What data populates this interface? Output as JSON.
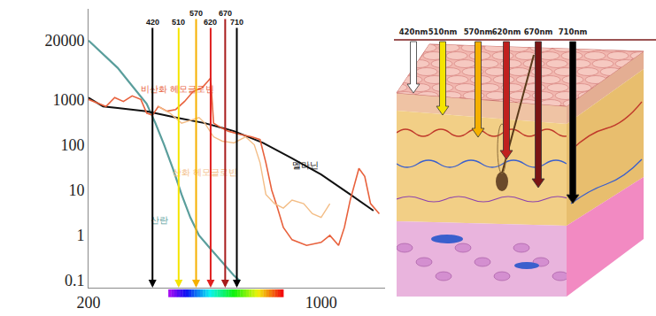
{
  "chart_data": {
    "type": "line",
    "log": "y",
    "grid": false,
    "xlim": [
      200,
      1220
    ],
    "xticks": [
      200,
      1000
    ],
    "ylim": [
      0.07,
      100000
    ],
    "yticks": [
      0.1,
      1,
      10,
      100,
      1000,
      20000
    ],
    "series": [
      {
        "name": "산란",
        "color": "#5a9e9c",
        "x": [
          200,
          250,
          300,
          350,
          400,
          430,
          460,
          490,
          520,
          550,
          580,
          620,
          660,
          700,
          720
        ],
        "values": [
          20000,
          10000,
          5000,
          2000,
          800,
          300,
          100,
          30,
          8,
          2.5,
          1,
          0.5,
          0.25,
          0.13,
          0.1
        ]
      },
      {
        "name": "멜라닌",
        "color": "#111111",
        "x": [
          200,
          250,
          300,
          400,
          500,
          600,
          700,
          800,
          900,
          1000,
          1100,
          1180
        ],
        "values": [
          1100,
          700,
          650,
          550,
          400,
          300,
          200,
          110,
          50,
          22,
          8,
          3.5
        ]
      },
      {
        "name": "비산화 헤모글로빈",
        "color": "#e8613c",
        "x": [
          200,
          230,
          260,
          290,
          320,
          350,
          380,
          400,
          420,
          440,
          470,
          500,
          530,
          560,
          590,
          610,
          620,
          630,
          650,
          680,
          720,
          760,
          790,
          810,
          830,
          850,
          870,
          900,
          950,
          1000,
          1030,
          1060,
          1080,
          1100,
          1130,
          1150,
          1170,
          1200
        ],
        "values": [
          1000,
          850,
          700,
          1100,
          900,
          1200,
          1000,
          500,
          450,
          700,
          550,
          600,
          900,
          1500,
          1800,
          2500,
          3000,
          300,
          250,
          200,
          170,
          150,
          130,
          40,
          10,
          4,
          1.5,
          0.8,
          0.6,
          0.7,
          1,
          0.6,
          1.5,
          6,
          30,
          20,
          5,
          3
        ]
      },
      {
        "name": "산화 헤모글로빈",
        "color": "#f3bd86",
        "x": [
          440,
          480,
          520,
          550,
          580,
          600,
          630,
          660,
          700,
          740,
          770,
          790,
          810,
          840,
          870,
          900,
          940,
          970,
          1000,
          1030
        ],
        "values": [
          700,
          500,
          300,
          350,
          400,
          300,
          150,
          120,
          110,
          150,
          100,
          40,
          8,
          5,
          4,
          6,
          5,
          3,
          2.5,
          5
        ]
      }
    ],
    "annotations": [
      {
        "x": 420,
        "text": "420",
        "color": "#000000"
      },
      {
        "x": 510,
        "text": "510",
        "color": "#f5e400"
      },
      {
        "x": 570,
        "text": "570",
        "color": "#f5b000"
      },
      {
        "x": 620,
        "text": "620",
        "color": "#e02020"
      },
      {
        "x": 670,
        "text": "670",
        "color": "#a81c1c"
      },
      {
        "x": 710,
        "text": "710",
        "color": "#000000"
      }
    ]
  },
  "diagram": {
    "arrows": [
      {
        "label": "420nm",
        "color": "#ffffff"
      },
      {
        "label": "510nm",
        "color": "#f5e400"
      },
      {
        "label": "570nm",
        "color": "#f5b000"
      },
      {
        "label": "620nm",
        "color": "#c0201e"
      },
      {
        "label": "670nm",
        "color": "#7a1414"
      },
      {
        "label": "710nm",
        "color": "#000000"
      }
    ]
  }
}
